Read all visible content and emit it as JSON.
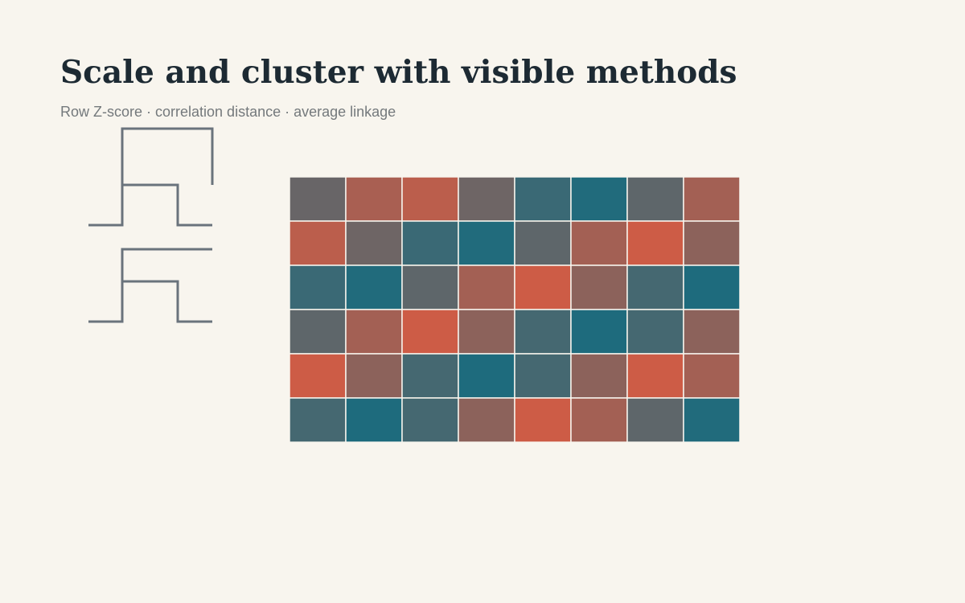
{
  "title": "Scale and cluster with visible methods",
  "subtitle": "Row Z-score · correlation distance · average linkage",
  "colors": {
    "background": "#f8f5ee",
    "low": "#1a6b7e",
    "mid": "#626669",
    "high": "#d95b42",
    "dendrogram": "#6a737c",
    "cell_border": "#f8f5ee"
  },
  "chart_data": {
    "type": "heatmap",
    "n_rows": 6,
    "n_cols": 8,
    "row_labels": [],
    "col_labels": [],
    "value_scale": [
      -1,
      1
    ],
    "values": [
      [
        0.05,
        0.6,
        0.75,
        0.1,
        -0.55,
        -0.9,
        -0.05,
        0.55
      ],
      [
        0.75,
        0.1,
        -0.55,
        -0.9,
        -0.05,
        0.55,
        0.9,
        0.35
      ],
      [
        -0.55,
        -0.9,
        -0.05,
        0.55,
        0.9,
        0.35,
        -0.4,
        -0.95
      ],
      [
        -0.05,
        0.55,
        0.9,
        0.35,
        -0.4,
        -0.95,
        -0.4,
        0.35
      ],
      [
        0.9,
        0.35,
        -0.4,
        -0.95,
        -0.4,
        0.35,
        0.9,
        0.55
      ],
      [
        -0.4,
        -0.95,
        -0.4,
        0.35,
        0.9,
        0.55,
        -0.05,
        -0.9
      ]
    ],
    "row_dendrogram": {
      "merges": [
        {
          "left": 2,
          "right": 3,
          "height": 0.3
        },
        {
          "left": 1,
          "right": 4,
          "height": 0.6
        },
        {
          "left": 0,
          "right": 5,
          "height": 0.3
        },
        {
          "left": 2,
          "right": 3,
          "height": 0.6
        }
      ]
    }
  }
}
